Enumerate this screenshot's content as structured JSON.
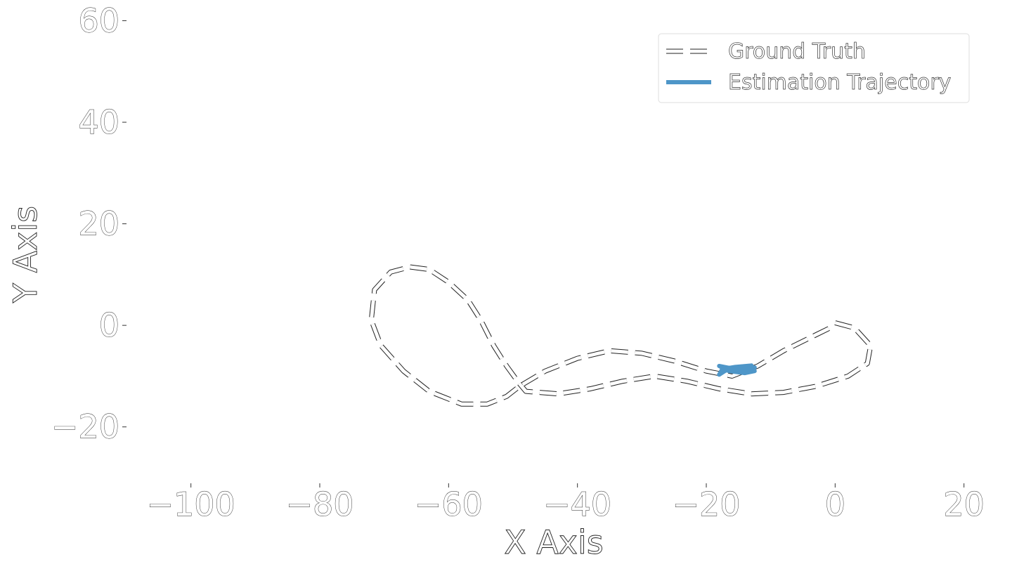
{
  "chart_data": {
    "type": "line",
    "title": "",
    "xlabel": "X Axis",
    "ylabel": "Y Axis",
    "xlim": [
      -110,
      22
    ],
    "ylim": [
      -30,
      62
    ],
    "x_ticks": [
      -100,
      -80,
      -60,
      -40,
      -20,
      0,
      20
    ],
    "y_ticks": [
      -20,
      0,
      20,
      40,
      60
    ],
    "x_tick_labels": [
      "−100",
      "−80",
      "−60",
      "−40",
      "−20",
      "0",
      "20"
    ],
    "y_tick_labels": [
      "−20",
      "0",
      "20",
      "40",
      "60"
    ],
    "grid": false,
    "legend_position": "top-right",
    "series": [
      {
        "name": "Ground Truth",
        "style": "dashed",
        "color": "#ffffff",
        "edge_color": "#222222",
        "x": [
          0,
          3,
          5.5,
          5,
          2,
          -3,
          -8,
          -13,
          -18,
          -23,
          -28,
          -33,
          -38,
          -43,
          -48,
          -49,
          -51,
          -53,
          -55,
          -57,
          -60,
          -63,
          -66,
          -69,
          -71.5,
          -72,
          -70.5,
          -67,
          -63,
          -58,
          -54,
          -51,
          -49,
          -45,
          -40,
          -35,
          -30,
          -25,
          -20,
          -16,
          -12,
          -8,
          -4,
          0
        ],
        "y": [
          0.5,
          -0.5,
          -4,
          -7.5,
          -10,
          -12,
          -13.2,
          -13.5,
          -12.5,
          -11,
          -10,
          -11,
          -12.5,
          -13.5,
          -13,
          -11.5,
          -8,
          -4,
          1,
          5,
          8.5,
          11,
          11.5,
          10.5,
          7,
          1,
          -4,
          -9,
          -13,
          -15.5,
          -15.5,
          -14,
          -12,
          -9,
          -6.5,
          -5,
          -5.5,
          -7,
          -9,
          -10,
          -8,
          -5,
          -2.5,
          0
        ]
      },
      {
        "name": "Estimation Trajectory",
        "style": "solid",
        "color": "#4e96c8",
        "x": [
          -18,
          -16,
          -14,
          -12.5,
          -13.5,
          -15,
          -17,
          -18,
          -17.5,
          -15.5,
          -13,
          -12.5,
          -14,
          -16.5,
          -18
        ],
        "y": [
          -8,
          -8.5,
          -8.6,
          -8.3,
          -8.8,
          -8.4,
          -8.9,
          -9.7,
          -8.6,
          -8.2,
          -7.9,
          -9,
          -9.4,
          -9,
          -8
        ]
      }
    ]
  }
}
